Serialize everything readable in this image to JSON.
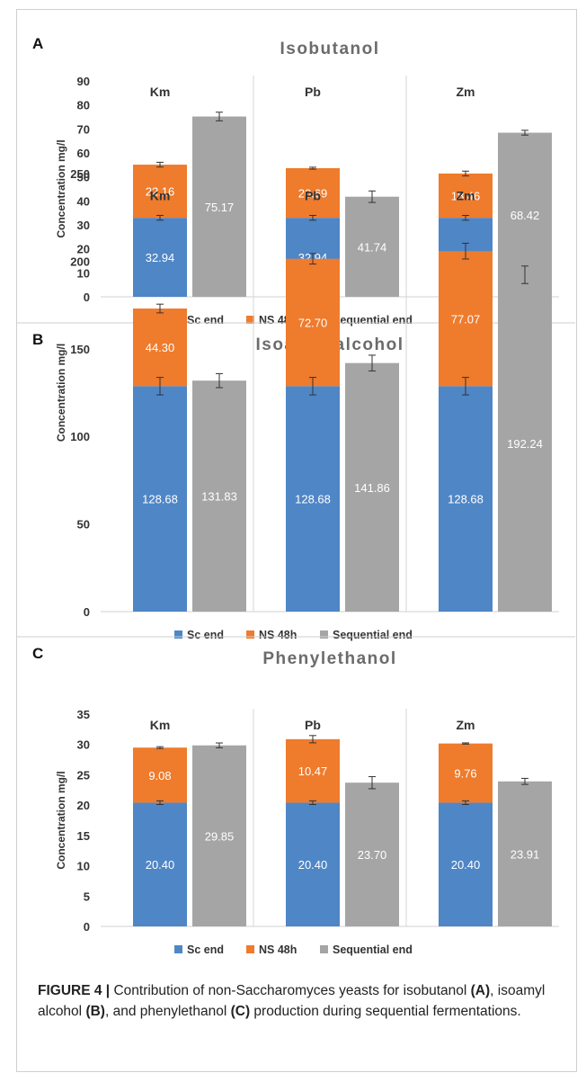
{
  "colors": {
    "sc_end": "#4f86c6",
    "ns_48h": "#ef7b2c",
    "sequential": "#a5a5a5",
    "title": "#6b6b6b",
    "axis_text": "#333333"
  },
  "legend": {
    "sc_end": "Sc end",
    "ns_48h": "NS 48h",
    "sequential": "Sequential end"
  },
  "chart_data": [
    {
      "type": "bar",
      "panel_label": "A",
      "title": "Isobutanol",
      "ylabel": "Concentration mg/l",
      "ylim": [
        0,
        90
      ],
      "yticks": [
        0,
        10,
        20,
        30,
        40,
        50,
        60,
        70,
        80,
        90
      ],
      "groups": [
        "Km",
        "Pb",
        "Zm"
      ],
      "series": [
        {
          "name": "Sc end",
          "values": [
            32.94,
            32.94,
            32.94
          ],
          "labels": [
            "32.94",
            "32.94",
            "32.94"
          ],
          "errors": [
            1.0,
            1.0,
            1.0
          ]
        },
        {
          "name": "NS 48h",
          "values": [
            22.16,
            20.69,
            18.46
          ],
          "labels": [
            "22.16",
            "20.69",
            "18.46"
          ],
          "errors": [
            1.0,
            0.4,
            1.0
          ]
        },
        {
          "name": "Sequential end",
          "values": [
            75.17,
            41.74,
            68.42
          ],
          "labels": [
            "75.17",
            "41.74",
            "68.42"
          ],
          "errors": [
            1.8,
            2.4,
            1.0
          ]
        }
      ]
    },
    {
      "type": "bar",
      "panel_label": "B",
      "title": "Isoamyl alcohol",
      "ylabel": "Concentration mg/l",
      "ylim": [
        0,
        250
      ],
      "yticks": [
        0,
        50,
        100,
        150,
        200,
        250
      ],
      "groups": [
        "Km",
        "Pb",
        "Zm"
      ],
      "series": [
        {
          "name": "Sc end",
          "values": [
            128.68,
            128.68,
            128.68
          ],
          "labels": [
            "128.68",
            "128.68",
            "128.68"
          ],
          "errors": [
            5.0,
            5.0,
            5.0
          ]
        },
        {
          "name": "NS 48h",
          "values": [
            44.3,
            72.7,
            77.07
          ],
          "labels": [
            "44.30",
            "72.70",
            "77.07"
          ],
          "errors": [
            2.5,
            3.0,
            4.5
          ]
        },
        {
          "name": "Sequential end",
          "values": [
            131.83,
            141.86,
            192.24
          ],
          "labels": [
            "131.83",
            "141.86",
            "192.24"
          ],
          "errors": [
            4.0,
            4.5,
            5.0
          ]
        }
      ]
    },
    {
      "type": "bar",
      "panel_label": "C",
      "title": "Phenylethanol",
      "ylabel": "Concentration mg/l",
      "ylim": [
        0,
        35
      ],
      "yticks": [
        0,
        5,
        10,
        15,
        20,
        25,
        30,
        35
      ],
      "groups": [
        "Km",
        "Pb",
        "Zm"
      ],
      "series": [
        {
          "name": "Sc end",
          "values": [
            20.4,
            20.4,
            20.4
          ],
          "labels": [
            "20.40",
            "20.40",
            "20.40"
          ],
          "errors": [
            0.3,
            0.3,
            0.3
          ]
        },
        {
          "name": "NS 48h",
          "values": [
            9.08,
            10.47,
            9.76
          ],
          "labels": [
            "9.08",
            "10.47",
            "9.76"
          ],
          "errors": [
            0.15,
            0.6,
            0.1
          ]
        },
        {
          "name": "Sequential end",
          "values": [
            29.85,
            23.7,
            23.91
          ],
          "labels": [
            "29.85",
            "23.70",
            "23.91"
          ],
          "errors": [
            0.4,
            1.0,
            0.5
          ]
        }
      ]
    }
  ],
  "caption": {
    "figure": "FIGURE 4 |",
    "text_1": " Contribution of non-Saccharomyces yeasts for isobutanol ",
    "ref_a": "(A)",
    "text_2": ", isoamyl alcohol ",
    "ref_b": "(B)",
    "text_3": ", and phenylethanol ",
    "ref_c": "(C)",
    "text_4": " production during sequential fermentations."
  }
}
